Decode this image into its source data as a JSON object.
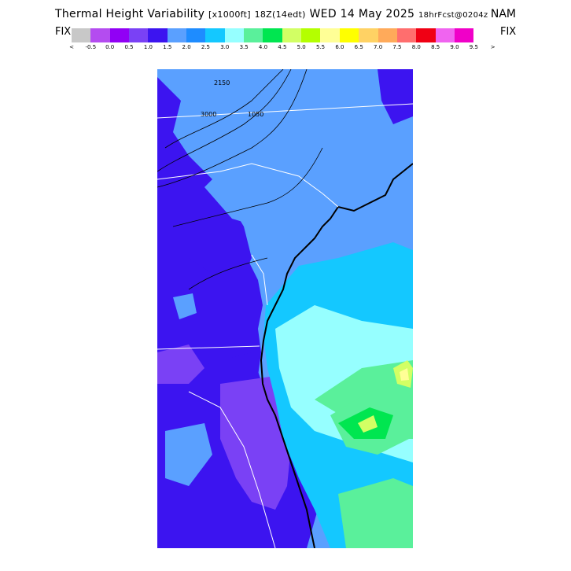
{
  "title": {
    "main": "Thermal Height Variability",
    "unit": "[x1000ft]",
    "run": "18Z(14edt)",
    "date": "WED 14 May 2025",
    "forecast": "18hrFcst@0204z",
    "model": "NAM"
  },
  "legend": {
    "fix_left": "FIX",
    "fix_right": "FIX",
    "start_arrow": "<",
    "end_arrow": ">",
    "colors": [
      "#c8c8c8",
      "#b44cf0",
      "#9100f5",
      "#7a41f5",
      "#3c14f0",
      "#5aa0ff",
      "#1e8cff",
      "#14c8ff",
      "#96ffff",
      "#5af09b",
      "#00e650",
      "#d2ff64",
      "#b4ff00",
      "#ffff96",
      "#ffff00",
      "#ffd264",
      "#ffaa5a",
      "#ff6e6e",
      "#f00014",
      "#f064f0",
      "#f000c8"
    ],
    "labels": [
      "-0.5",
      "0.0",
      "0.5",
      "1.0",
      "1.5",
      "2.0",
      "2.5",
      "3.0",
      "3.5",
      "4.0",
      "4.5",
      "5.0",
      "5.5",
      "6.0",
      "6.5",
      "7.0",
      "7.5",
      "8.0",
      "8.5",
      "9.0",
      "9.5"
    ]
  },
  "map": {
    "contour_labels": [
      "2150",
      "3000",
      "1050"
    ]
  }
}
